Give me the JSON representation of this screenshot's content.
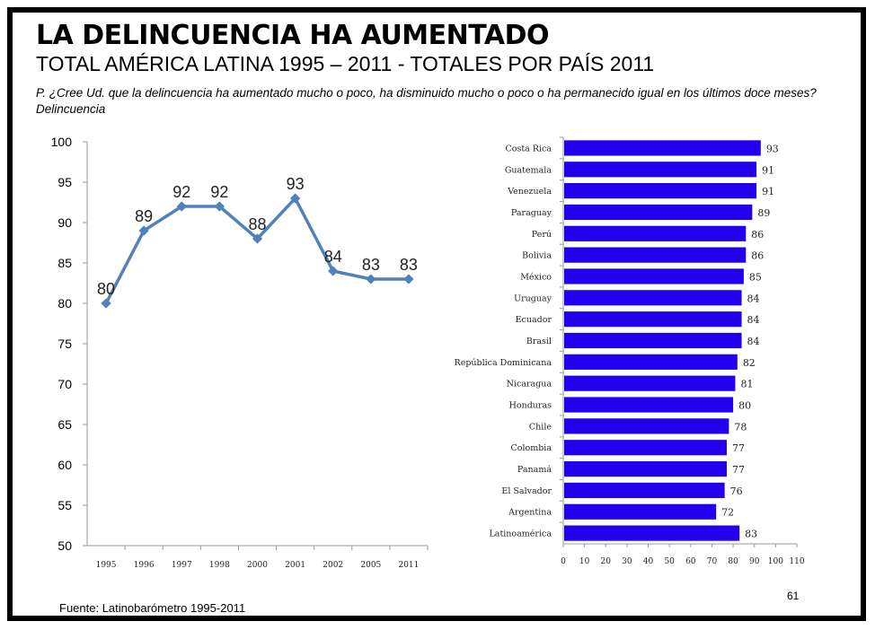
{
  "slide": {
    "title": "LA DELINCUENCIA HA AUMENTADO",
    "subtitle": "TOTAL AMÉRICA LATINA 1995 – 2011 - TOTALES POR PAÍS 2011",
    "question": "P. ¿Cree Ud. que la delincuencia ha aumentado mucho o poco, ha disminuido mucho o poco o ha permanecido igual en los últimos doce meses? Delincuencia",
    "source": "Fuente: Latinobarómetro 1995-2011",
    "page_number": "61"
  },
  "chart_data": [
    {
      "type": "line",
      "x": [
        "1995",
        "1996",
        "1997",
        "1998",
        "2000",
        "2001",
        "2002",
        "2005",
        "2011"
      ],
      "series": [
        {
          "values": [
            80,
            89,
            92,
            92,
            88,
            93,
            84,
            83,
            83
          ],
          "color": "#4f81bd"
        }
      ],
      "ylim": [
        50,
        100
      ],
      "yticks": [
        "100",
        "95",
        "90",
        "85",
        "80",
        "75",
        "70",
        "65",
        "60",
        "55",
        "50"
      ],
      "data_labels": [
        "80",
        "89",
        "92",
        "92",
        "88",
        "93",
        "84",
        "83",
        "83"
      ],
      "grid": false,
      "title": "",
      "xlabel": "",
      "ylabel": ""
    },
    {
      "type": "bar",
      "orientation": "horizontal",
      "categories": [
        "Costa Rica",
        "Guatemala",
        "Venezuela",
        "Paraguay",
        "Perú",
        "Bolivia",
        "México",
        "Uruguay",
        "Ecuador",
        "Brasil",
        "República Dominicana",
        "Nicaragua",
        "Honduras",
        "Chile",
        "Colombia",
        "Panamá",
        "El Salvador",
        "Argentina",
        "Latinoamérica"
      ],
      "values": [
        93,
        91,
        91,
        89,
        86,
        86,
        85,
        84,
        84,
        84,
        82,
        81,
        80,
        78,
        77,
        77,
        76,
        72,
        83
      ],
      "data_labels": [
        "93",
        "91",
        "91",
        "89",
        "86",
        "86",
        "85",
        "84",
        "84",
        "84",
        "82",
        "81",
        "80",
        "78",
        "77",
        "77",
        "76",
        "72",
        "83"
      ],
      "xlim": [
        0,
        110
      ],
      "xticks": [
        "0",
        "10",
        "20",
        "30",
        "40",
        "50",
        "60",
        "70",
        "80",
        "90",
        "100",
        "110"
      ],
      "bar_color": "#2200ee",
      "grid": false,
      "title": "",
      "xlabel": "",
      "ylabel": ""
    }
  ]
}
